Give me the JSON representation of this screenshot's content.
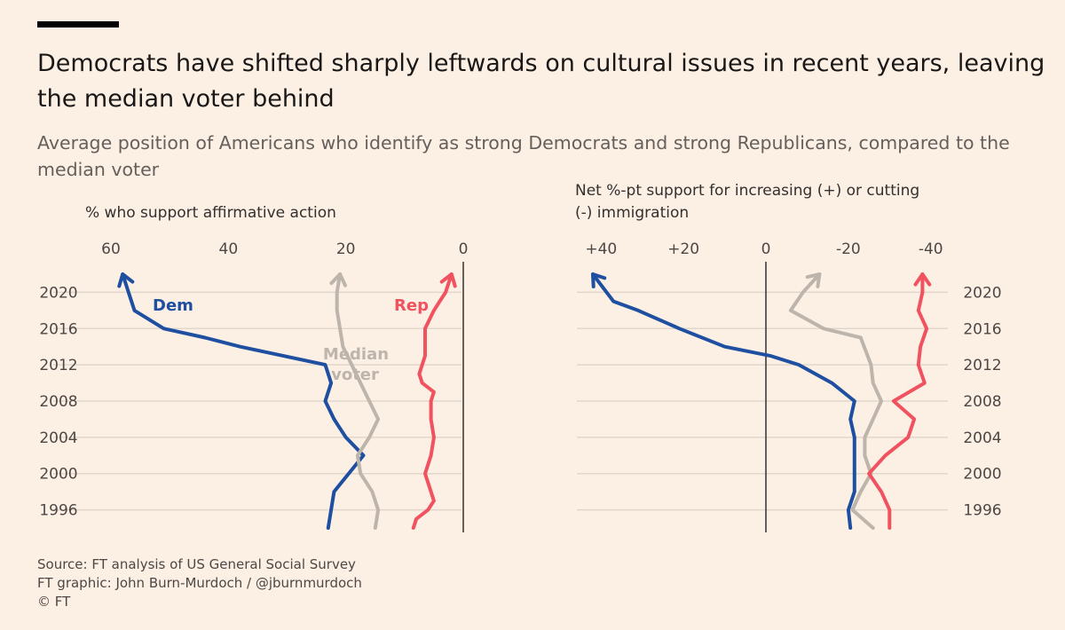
{
  "header": {
    "title": "Democrats have shifted sharply leftwards on cultural issues in recent years, leaving the median voter behind",
    "subtitle": "Average position of Americans who identify as strong Democrats and strong Republicans, compared to the median voter"
  },
  "footer": {
    "source": "Source: FT analysis of US General Social Survey",
    "credit": "FT graphic: John Burn-Murdoch / @jburnmurdoch",
    "copyright": "© FT"
  },
  "colors": {
    "dem": "#1e4fa0",
    "rep": "#f0525f",
    "median": "#bdb5ac",
    "grid": "#e2d7cc",
    "zero": "#33302e"
  },
  "chart_data": [
    {
      "type": "line",
      "id": "affirmative",
      "ylabel": "% who support affirmative action",
      "xlim": [
        60,
        0
      ],
      "x_ticks": [
        60,
        40,
        20,
        0
      ],
      "x_tick_labels": [
        "60",
        "40",
        "20",
        "0"
      ],
      "y_ticks": [
        1996,
        2000,
        2004,
        2008,
        2012,
        2016,
        2020
      ],
      "ylim": [
        1994,
        2022
      ],
      "series": [
        {
          "name": "Dem",
          "color": "dem",
          "points": [
            [
              23,
              1994
            ],
            [
              22.5,
              1996
            ],
            [
              22,
              1998
            ],
            [
              17,
              2002
            ],
            [
              20,
              2004
            ],
            [
              22,
              2006
            ],
            [
              23.5,
              2008
            ],
            [
              22.5,
              2010
            ],
            [
              23.5,
              2012
            ],
            [
              38,
              2014
            ],
            [
              44,
              2015
            ],
            [
              51,
              2016
            ],
            [
              56,
              2018
            ],
            [
              57,
              2020
            ],
            [
              58,
              2022
            ]
          ]
        },
        {
          "name": "Median voter",
          "color": "median",
          "points": [
            [
              15,
              1994
            ],
            [
              14.5,
              1996
            ],
            [
              15.5,
              1998
            ],
            [
              17.5,
              2000
            ],
            [
              18,
              2002
            ],
            [
              16,
              2004
            ],
            [
              14.5,
              2006
            ],
            [
              16,
              2008
            ],
            [
              17.5,
              2010
            ],
            [
              19,
              2012
            ],
            [
              20.5,
              2014
            ],
            [
              21,
              2016
            ],
            [
              21.5,
              2018
            ],
            [
              21.5,
              2020
            ],
            [
              21,
              2022
            ]
          ]
        },
        {
          "name": "Rep",
          "color": "rep",
          "points": [
            [
              8.5,
              1994
            ],
            [
              8,
              1995
            ],
            [
              6,
              1996
            ],
            [
              5,
              1997
            ],
            [
              5.5,
              1998
            ],
            [
              6.5,
              2000
            ],
            [
              5.5,
              2002
            ],
            [
              5,
              2004
            ],
            [
              5.5,
              2006
            ],
            [
              5.5,
              2008
            ],
            [
              5,
              2009
            ],
            [
              7,
              2010
            ],
            [
              7.5,
              2011
            ],
            [
              7,
              2012
            ],
            [
              6.5,
              2013
            ],
            [
              6.5,
              2014
            ],
            [
              6.5,
              2016
            ],
            [
              5,
              2018
            ],
            [
              4,
              2019
            ],
            [
              3,
              2020
            ],
            [
              2,
              2022
            ]
          ]
        }
      ]
    },
    {
      "type": "line",
      "id": "immigration",
      "ylabel": "Net %-pt support for increasing (+) or cutting (-) immigration",
      "xlim": [
        42,
        -42
      ],
      "x_ticks": [
        40,
        20,
        0,
        -20,
        -40
      ],
      "x_tick_labels": [
        "+40",
        "+20",
        "0",
        "-20",
        "-40"
      ],
      "y_ticks": [
        1996,
        2000,
        2004,
        2008,
        2012,
        2016,
        2020
      ],
      "ylim": [
        1994,
        2022
      ],
      "series": [
        {
          "name": "Dem",
          "color": "dem",
          "points": [
            [
              -20.5,
              1994
            ],
            [
              -20,
              1996
            ],
            [
              -21.5,
              1998
            ],
            [
              -21.5,
              2000
            ],
            [
              -21.5,
              2002
            ],
            [
              -21.5,
              2004
            ],
            [
              -20.5,
              2006
            ],
            [
              -21.5,
              2008
            ],
            [
              -16,
              2010
            ],
            [
              -8,
              2012
            ],
            [
              -1,
              2013
            ],
            [
              10,
              2014
            ],
            [
              21,
              2016
            ],
            [
              31,
              2018
            ],
            [
              37,
              2019
            ],
            [
              42,
              2022
            ]
          ]
        },
        {
          "name": "Median voter",
          "color": "median",
          "points": [
            [
              -26,
              1994
            ],
            [
              -21,
              1996
            ],
            [
              -23,
              1998
            ],
            [
              -25.5,
              2000
            ],
            [
              -24,
              2002
            ],
            [
              -24,
              2004
            ],
            [
              -26,
              2006
            ],
            [
              -28,
              2008
            ],
            [
              -26,
              2010
            ],
            [
              -25.5,
              2012
            ],
            [
              -23,
              2015
            ],
            [
              -14,
              2016
            ],
            [
              -6,
              2018
            ],
            [
              -9,
              2020
            ],
            [
              -13,
              2022
            ]
          ]
        },
        {
          "name": "Rep",
          "color": "rep",
          "points": [
            [
              -30,
              1994
            ],
            [
              -30,
              1996
            ],
            [
              -28,
              1998
            ],
            [
              -25,
              2000
            ],
            [
              -29,
              2002
            ],
            [
              -34.5,
              2004
            ],
            [
              -36,
              2006
            ],
            [
              -31,
              2008
            ],
            [
              -38.5,
              2010
            ],
            [
              -37,
              2012
            ],
            [
              -37.5,
              2014
            ],
            [
              -39,
              2016
            ],
            [
              -37,
              2018
            ],
            [
              -38,
              2020
            ],
            [
              -38,
              2022
            ]
          ]
        }
      ]
    }
  ],
  "annotations": {
    "dem_label": "Dem",
    "rep_label": "Rep",
    "median_label_1": "Median",
    "median_label_2": "voter"
  }
}
